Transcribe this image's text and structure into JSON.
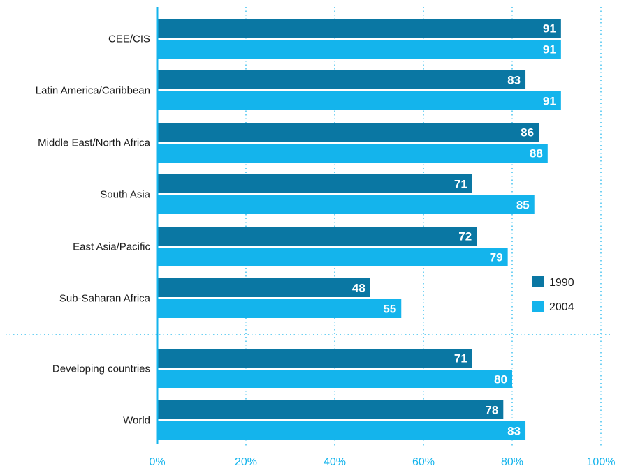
{
  "chart_data": {
    "type": "bar",
    "orientation": "horizontal",
    "categories": [
      "CEE/CIS",
      "Latin America/Caribbean",
      "Middle East/North Africa",
      "South Asia",
      "East Asia/Pacific",
      "Sub-Saharan Africa",
      "Developing countries",
      "World"
    ],
    "series": [
      {
        "name": "1990",
        "values": [
          91,
          83,
          86,
          71,
          72,
          48,
          71,
          78
        ]
      },
      {
        "name": "2004",
        "values": [
          91,
          91,
          88,
          85,
          79,
          55,
          80,
          83
        ]
      }
    ],
    "x_ticks": [
      "0%",
      "20%",
      "40%",
      "60%",
      "80%",
      "100%"
    ],
    "xlim": [
      0,
      100
    ],
    "grid": true,
    "legend_position": "right",
    "colors": {
      "series_1990": "#0a77a3",
      "series_2004": "#14b4ec",
      "tick_text": "#14b4ec",
      "axis": "#14b4ec",
      "grid": "#14b4ec"
    }
  }
}
